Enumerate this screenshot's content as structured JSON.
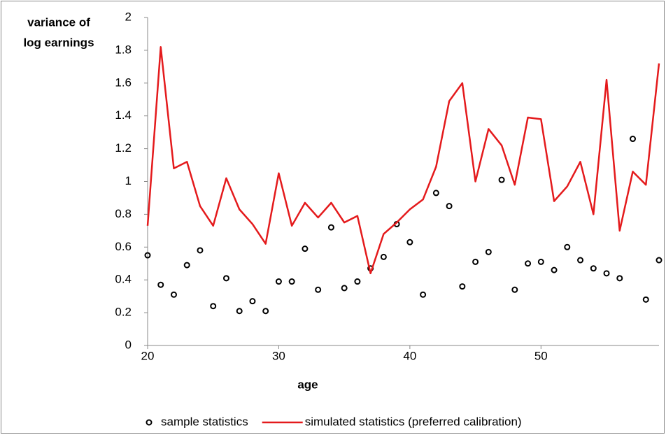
{
  "chart_data": {
    "type": "combo",
    "y_label": [
      "variance of",
      "log earnings"
    ],
    "x_label": "age",
    "x": [
      20,
      21,
      22,
      23,
      24,
      25,
      26,
      27,
      28,
      29,
      30,
      31,
      32,
      33,
      34,
      35,
      36,
      37,
      38,
      39,
      40,
      41,
      42,
      43,
      44,
      45,
      46,
      47,
      48,
      49,
      50,
      51,
      52,
      53,
      54,
      55,
      56,
      57,
      58,
      59
    ],
    "series": [
      {
        "name": "sample statistics",
        "type": "scatter",
        "color": "#000000",
        "values": [
          0.55,
          0.37,
          0.31,
          0.49,
          0.58,
          0.24,
          0.41,
          0.21,
          0.27,
          0.21,
          0.39,
          0.39,
          0.59,
          0.34,
          0.72,
          0.35,
          0.39,
          0.47,
          0.54,
          0.74,
          0.63,
          0.31,
          0.93,
          0.85,
          0.36,
          0.51,
          0.57,
          1.01,
          0.34,
          0.5,
          0.51,
          0.46,
          0.6,
          0.52,
          0.47,
          0.44,
          0.41,
          1.26,
          0.28,
          0.52
        ]
      },
      {
        "name": "simulated statistics (preferred calibration)",
        "type": "line",
        "color": "#e41a1c",
        "values": [
          0.73,
          1.82,
          1.08,
          1.12,
          0.85,
          0.73,
          1.02,
          0.83,
          0.74,
          0.62,
          1.05,
          0.73,
          0.87,
          0.78,
          0.87,
          0.75,
          0.79,
          0.44,
          0.68,
          0.75,
          0.83,
          0.89,
          1.09,
          1.49,
          1.6,
          1.0,
          1.32,
          1.22,
          0.98,
          1.39,
          1.38,
          0.88,
          0.97,
          1.12,
          0.8,
          1.62,
          0.7,
          1.06,
          0.98,
          1.72
        ]
      }
    ],
    "xlim": [
      20,
      59
    ],
    "xticks": [
      20,
      30,
      40,
      50
    ],
    "ylim": [
      0,
      2
    ],
    "yticks": [
      0,
      0.2,
      0.4,
      0.6,
      0.8,
      1,
      1.2,
      1.4,
      1.6,
      1.8,
      2
    ],
    "grid": false,
    "legend": "bottom"
  }
}
